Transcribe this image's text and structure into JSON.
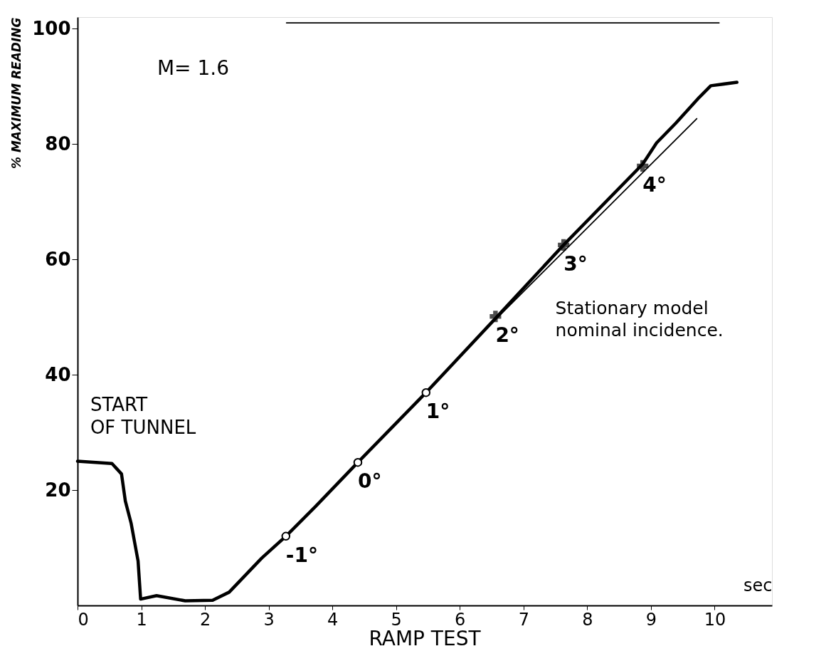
{
  "chart_data": {
    "type": "line",
    "title": "RAMP TEST",
    "xlabel": "sec",
    "ylabel": "% MAXIMUM READING",
    "xlim": [
      0,
      10.9
    ],
    "ylim": [
      0,
      102
    ],
    "xticks": [
      0,
      1,
      2,
      3,
      4,
      5,
      6,
      7,
      8,
      9,
      10
    ],
    "yticks": [
      20,
      40,
      60,
      80,
      100
    ],
    "series": [
      {
        "color": "#000000",
        "x": [
          0,
          0.54,
          0.69,
          0.75,
          0.84,
          0.95,
          0.99,
          1.24,
          1.69,
          2.12,
          2.38,
          2.89,
          3.27,
          3.74,
          4.4,
          5.47,
          6.58,
          7.63,
          8.87,
          9.09,
          9.39,
          9.76,
          9.94,
          10.35
        ],
        "values": [
          25,
          24.6,
          22.8,
          18.1,
          14.3,
          7.7,
          1.1,
          1.7,
          0.8,
          0.9,
          2.3,
          8.2,
          12,
          17.2,
          24.8,
          36.9,
          50,
          62.5,
          76.5,
          80.2,
          83.6,
          88.1,
          90.1,
          90.7
        ]
      },
      {
        "color": "#000000",
        "x": [
          6.6,
          9.72
        ],
        "values": [
          50,
          84.4
        ]
      },
      {
        "color": "#000000",
        "x": [
          3.28,
          4.44,
          5.5,
          6.63,
          7.69,
          8.79,
          10.07
        ],
        "values": [
          101,
          101,
          101,
          101,
          101,
          101,
          101
        ]
      },
      {
        "type": "scatter",
        "marker": "circle",
        "color": "#000000",
        "x": [
          3.27,
          4.4,
          5.47
        ],
        "values": [
          12,
          24.8,
          36.9
        ]
      },
      {
        "type": "scatter",
        "marker": "cross",
        "color": "#000000",
        "x": [
          6.56,
          7.63,
          8.87
        ],
        "values": [
          50.1,
          62.5,
          76.2
        ]
      }
    ],
    "annotations": [
      "M= 1.6",
      "START\nOF TUNNEL",
      "Stationary model\nnominal incidence.",
      {
        "text": "-1°",
        "x": 3.27,
        "y": 12
      },
      {
        "text": "0°",
        "x": 4.4,
        "y": 24.8
      },
      {
        "text": "1°",
        "x": 5.47,
        "y": 36.9
      },
      {
        "text": "2°",
        "x": 6.56,
        "y": 50.1
      },
      {
        "text": "3°",
        "x": 7.63,
        "y": 62.5
      },
      {
        "text": "4°",
        "x": 8.87,
        "y": 76.2
      }
    ]
  }
}
